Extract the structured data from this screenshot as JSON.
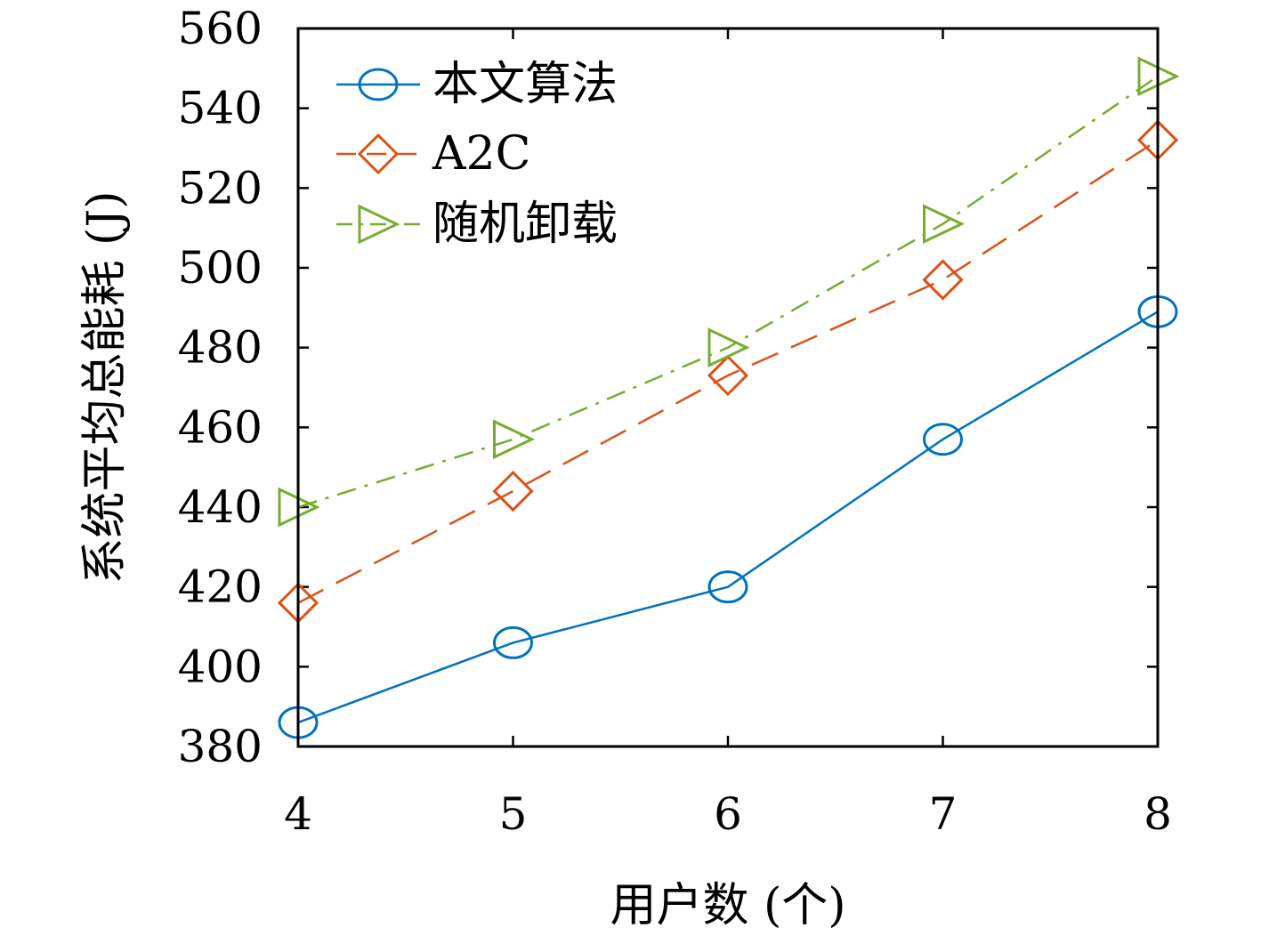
{
  "chart_data": {
    "type": "line",
    "title": "",
    "xlabel": "用户数 (个)",
    "ylabel": "系统平均总能耗 (J)",
    "x": [
      4,
      5,
      6,
      7,
      8
    ],
    "xlim": [
      4,
      8
    ],
    "ylim": [
      380,
      560
    ],
    "xticks": [
      "4",
      "5",
      "6",
      "7",
      "8"
    ],
    "yticks": [
      "380",
      "400",
      "420",
      "440",
      "460",
      "480",
      "500",
      "520",
      "540",
      "560"
    ],
    "grid": false,
    "legend_position": "top-left",
    "series": [
      {
        "name": "本文算法",
        "values": [
          386,
          406,
          420,
          457,
          489
        ],
        "color": "#0072BD",
        "marker": "circle",
        "line_style": "solid"
      },
      {
        "name": "A2C",
        "values": [
          416,
          444,
          473,
          497,
          532
        ],
        "color": "#D95319",
        "marker": "diamond",
        "line_style": "dashed"
      },
      {
        "name": "随机卸载",
        "values": [
          440,
          457,
          480,
          511,
          548
        ],
        "color": "#77AC30",
        "marker": "triangle-right",
        "line_style": "dash-dot"
      }
    ]
  }
}
